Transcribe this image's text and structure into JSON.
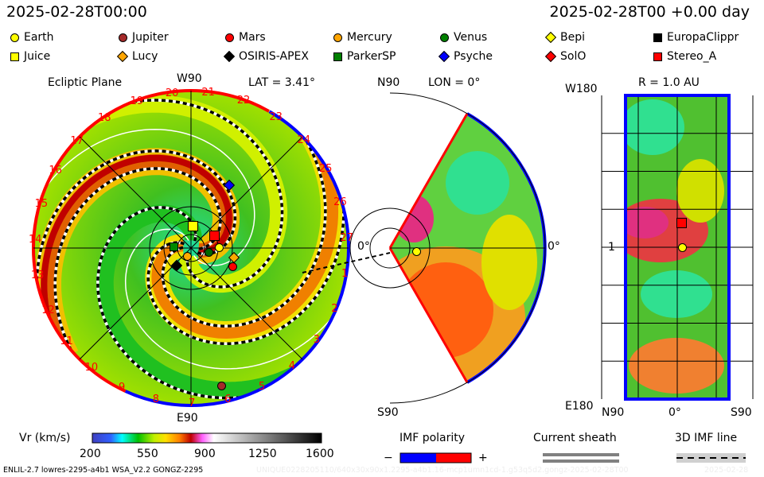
{
  "header": {
    "left_time": "2025-02-28T00:00",
    "right_time": "2025-02-28T00 +0.00 day"
  },
  "legend": [
    {
      "label": "Earth",
      "shape": "circle",
      "color": "#ffff00"
    },
    {
      "label": "Jupiter",
      "shape": "circle",
      "color": "#a52a2a"
    },
    {
      "label": "Mars",
      "shape": "circle",
      "color": "#ff0000"
    },
    {
      "label": "Mercury",
      "shape": "circle",
      "color": "#ffa500"
    },
    {
      "label": "Venus",
      "shape": "circle",
      "color": "#008000"
    },
    {
      "label": "Bepi",
      "shape": "diamond",
      "color": "#ffff00"
    },
    {
      "label": "EuropaClippr",
      "shape": "square",
      "color": "#000000"
    },
    {
      "label": "Juice",
      "shape": "square",
      "color": "#ffff00"
    },
    {
      "label": "Lucy",
      "shape": "diamond",
      "color": "#ffa500"
    },
    {
      "label": "OSIRIS-APEX",
      "shape": "diamond",
      "color": "#000000"
    },
    {
      "label": "ParkerSP",
      "shape": "square",
      "color": "#008000"
    },
    {
      "label": "Psyche",
      "shape": "diamond",
      "color": "#0000ff"
    },
    {
      "label": "SolO",
      "shape": "diamond",
      "color": "#ff0000"
    },
    {
      "label": "Stereo_A",
      "shape": "square",
      "color": "#ff0000"
    }
  ],
  "ecliptic": {
    "title": "Ecliptic Plane",
    "top": "W90",
    "bottom": "E90",
    "right": "0°",
    "lat": "LAT = 3.41°",
    "carrington_labels": [
      "20",
      "21",
      "22",
      "23",
      "24",
      "25",
      "26",
      "27",
      "1",
      "2",
      "3",
      "4",
      "5",
      "6",
      "7",
      "8",
      "9",
      "10",
      "11",
      "12",
      "13",
      "14",
      "15",
      "16",
      "17",
      "18",
      "19"
    ]
  },
  "meridional": {
    "top": "N90",
    "bottom": "S90",
    "lon": "LON = 0°",
    "right": "0°"
  },
  "radial": {
    "r": "R = 1.0 AU",
    "top": "W180",
    "bottom": "E180",
    "mid": "1",
    "x_labels": [
      "N90",
      "0°",
      "S90"
    ]
  },
  "colorbar": {
    "label": "Vr (km/s)",
    "ticks": [
      "200",
      "550",
      "900",
      "1250",
      "1600"
    ]
  },
  "imf": {
    "title": "IMF polarity",
    "minus": "−",
    "plus": "+",
    "neg_color": "#0000ff",
    "pos_color": "#ff0000"
  },
  "sheath": {
    "title": "Current sheath"
  },
  "imfline": {
    "title": "3D IMF line"
  },
  "footer": {
    "model": "ENLIL-2.7 lowres-2295-a4b1 WSA_V2.2 GONGZ-2295",
    "run_id": "UNIQUE0228205110/640x30x90x1.2295-a4b1.16-mcp1umn1cd-1.g53q5d2.gongz-2025-02-28T00",
    "date": "2025-02-28"
  }
}
